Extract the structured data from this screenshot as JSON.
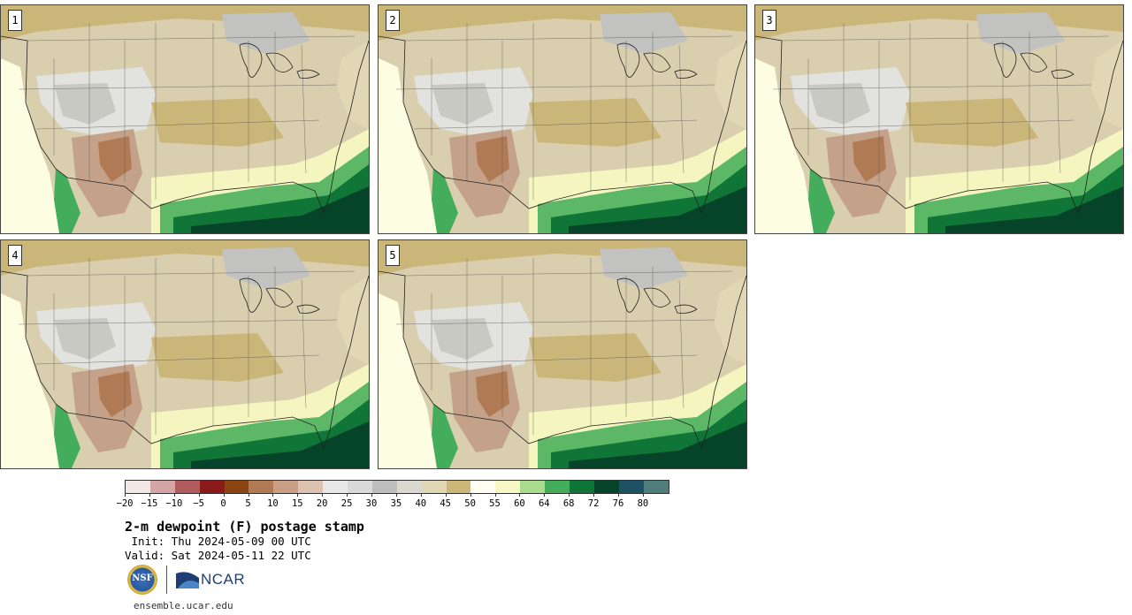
{
  "stamps": [
    {
      "label": "1"
    },
    {
      "label": "2"
    },
    {
      "label": "3"
    },
    {
      "label": "4"
    },
    {
      "label": "5"
    }
  ],
  "colorbar": {
    "colors": [
      "#f1e7e7",
      "#d4a5a5",
      "#b05c5c",
      "#8b1a1a",
      "#8b4513",
      "#b07a55",
      "#c89f84",
      "#ddc2b0",
      "#e8e8e8",
      "#dadada",
      "#bdbdbd",
      "#d9d9cf",
      "#e2d7b5",
      "#cdb67a",
      "#fffef0",
      "#f7f8c6",
      "#a9dc8d",
      "#43ad5c",
      "#0f7637",
      "#06442a",
      "#1e5262",
      "#4f7d7d"
    ],
    "tick_labels": [
      "−20",
      "−15",
      "−10",
      "−5",
      "0",
      "5",
      "10",
      "15",
      "20",
      "25",
      "30",
      "35",
      "40",
      "45",
      "50",
      "55",
      "60",
      "64",
      "68",
      "72",
      "76",
      "80"
    ]
  },
  "title": "2-m dewpoint (F) postage stamp",
  "init_line": " Init: Thu 2024-05-09 00 UTC",
  "valid_line": "Valid: Sat 2024-05-11 22 UTC",
  "logos": {
    "nsf": "NSF",
    "ncar": "NCAR"
  },
  "site": "ensemble.ucar.edu"
}
